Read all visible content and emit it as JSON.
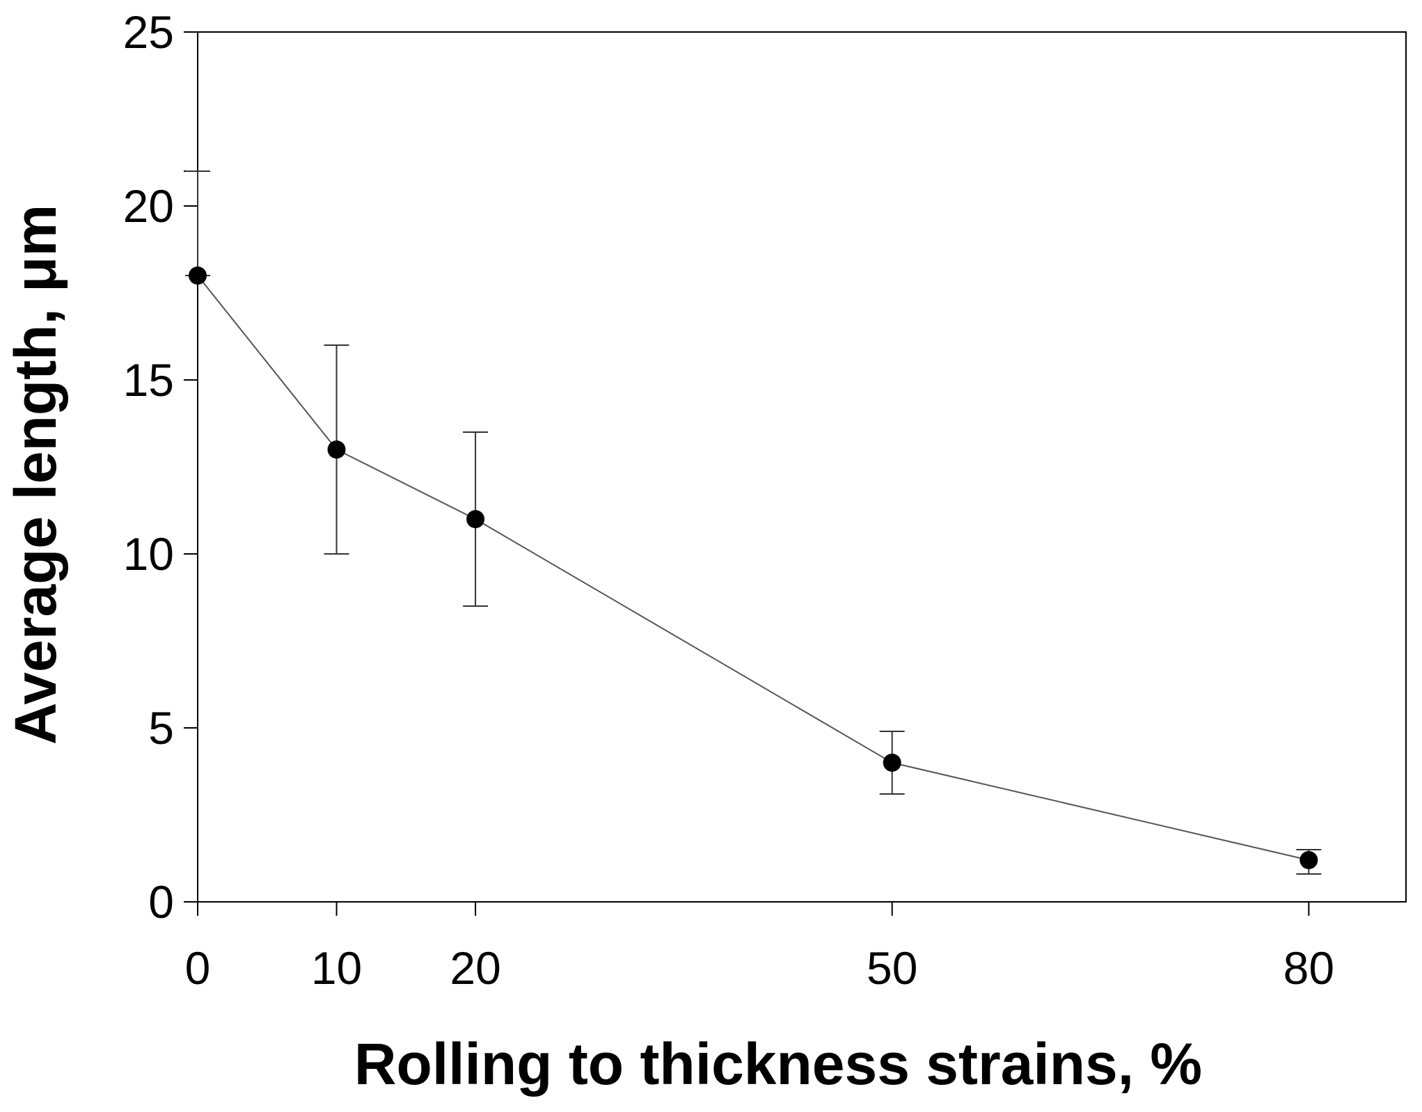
{
  "chart_data": {
    "type": "line",
    "title": "",
    "xlabel": "Rolling to thickness strains, %",
    "ylabel": "Average length, μm",
    "x": [
      0,
      10,
      20,
      50,
      80
    ],
    "x_ticks": [
      "0",
      "10",
      "20",
      "50",
      "80"
    ],
    "y_ticks": [
      "0",
      "5",
      "10",
      "15",
      "20",
      "25"
    ],
    "xlim": [
      0,
      87
    ],
    "ylim": [
      0,
      25
    ],
    "grid": false,
    "series": [
      {
        "name": "Average length",
        "values": [
          18,
          13,
          11,
          4,
          1.2
        ],
        "error_high": [
          21,
          16,
          13.5,
          4.9,
          1.5
        ],
        "error_low": [
          18,
          10,
          8.5,
          3.1,
          0.8
        ]
      }
    ],
    "colors": {
      "line": "#555555",
      "marker": "#000000",
      "axis": "#000000"
    }
  }
}
